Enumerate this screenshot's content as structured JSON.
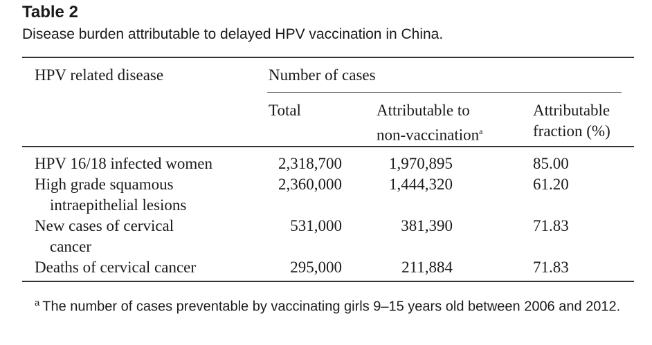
{
  "table": {
    "label": "Table 2",
    "caption": "Disease burden attributable to delayed HPV vaccination in China.",
    "header": {
      "disease": "HPV related disease",
      "group": "Number of cases",
      "total": "Total",
      "attrib_line1": "Attributable to",
      "attrib_line2": "non-vaccination",
      "attrib_mark": "a",
      "fraction_line1": "Attributable",
      "fraction_line2": "fraction (%)"
    },
    "rows": [
      {
        "disease_line1": "HPV 16/18 infected women",
        "disease_line2": "",
        "total": "2,318,700",
        "attributable": "1,970,895",
        "fraction": "85.00"
      },
      {
        "disease_line1": "High grade squamous",
        "disease_line2": "intraepithelial lesions",
        "total": "2,360,000",
        "attributable": "1,444,320",
        "fraction": "61.20"
      },
      {
        "disease_line1": "New cases of cervical",
        "disease_line2": "cancer",
        "total": "531,000",
        "attributable": "381,390",
        "fraction": "71.83"
      },
      {
        "disease_line1": "Deaths of cervical cancer",
        "disease_line2": "",
        "total": "295,000",
        "attributable": "211,884",
        "fraction": "71.83"
      }
    ],
    "footnote": {
      "mark": "a",
      "text": "The number of cases preventable by vaccinating girls 9–15 years old between 2006 and 2012."
    }
  }
}
